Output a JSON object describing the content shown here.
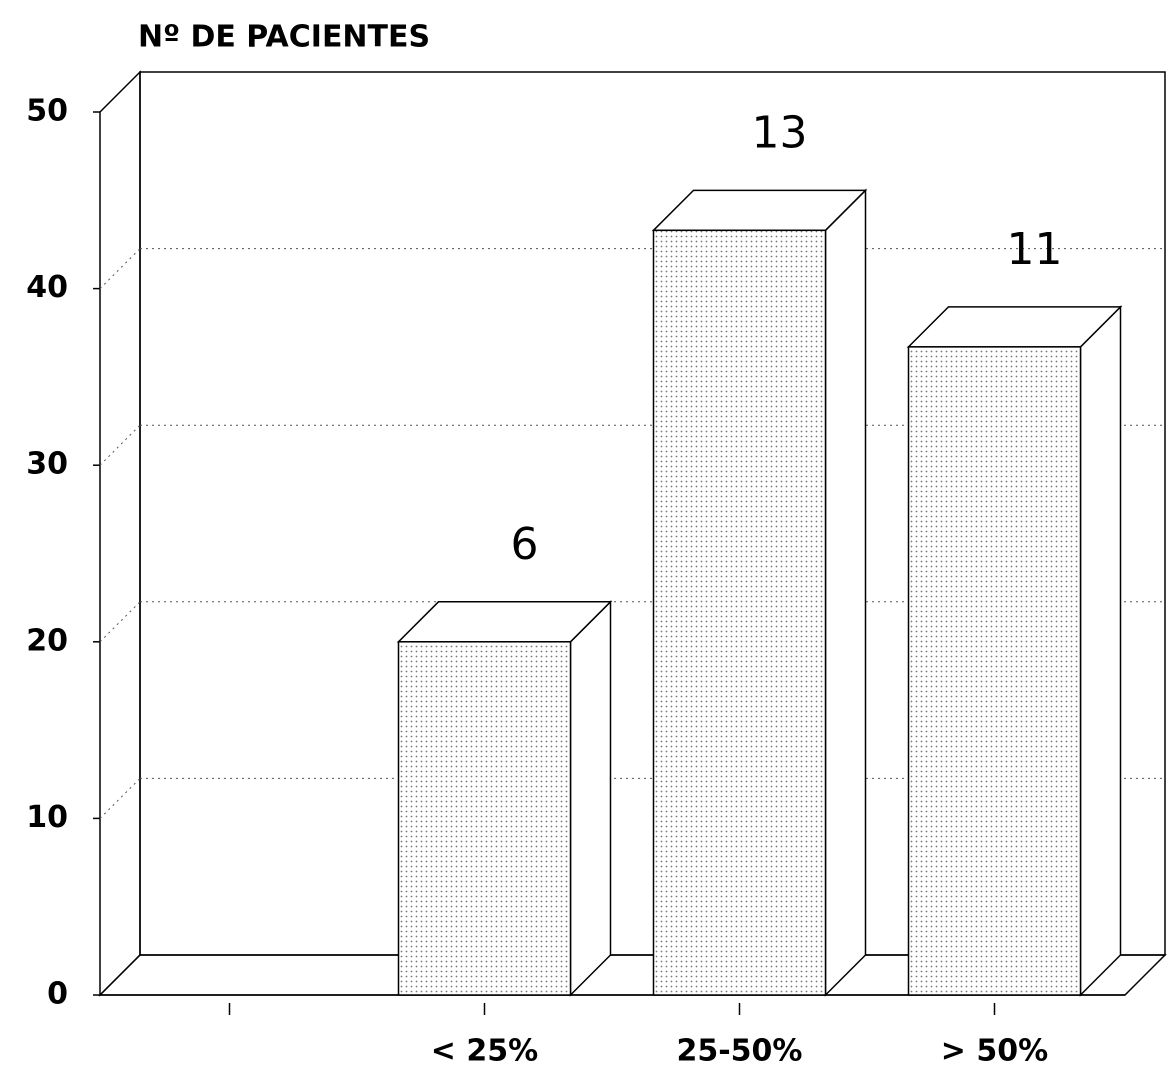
{
  "chart_data": {
    "type": "bar3d",
    "title": "Nº DE PACIENTES",
    "categories": [
      null,
      "< 25%",
      "25-50%",
      "> 50%"
    ],
    "values": [
      null,
      20,
      43.3,
      36.7
    ],
    "annotations": [
      null,
      "6",
      "13",
      "11"
    ],
    "color": "#d8d8d8",
    "ylim": [
      0,
      50
    ],
    "yticks": [
      0,
      10,
      20,
      30,
      40,
      50
    ],
    "grid": true
  }
}
